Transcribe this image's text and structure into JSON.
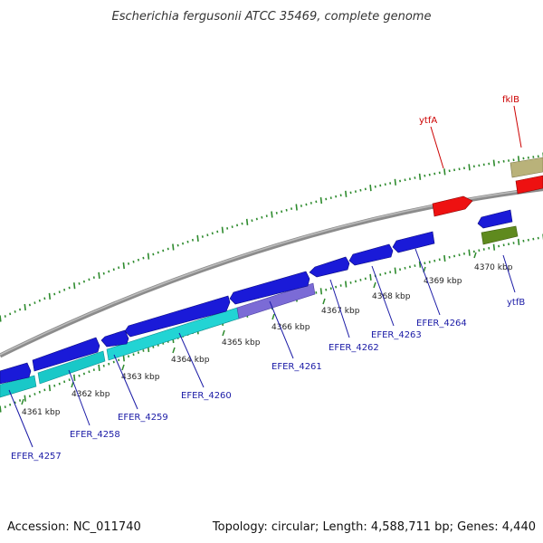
{
  "title": "Escherichia fergusonii ATCC 35469, complete genome",
  "footer": {
    "accession": "Accession: NC_011740",
    "summary": "Topology: circular; Length: 4,588,711 bp; Genes: 4,440"
  },
  "colors": {
    "backbone": "#8c8c8c",
    "tick": "#2e8b2e",
    "blue_label": "#1a1aa6",
    "red_label": "#cc0000",
    "cds_blue": "#1a1ad8",
    "cds_cyan": "#19c8c8",
    "cds_red": "#ee1111",
    "cds_olive": "#5f8a1e",
    "cds_khaki": "#b9b27a",
    "cds_purple": "#7b6bd6"
  },
  "ticks": [
    {
      "label": "4361 kbp"
    },
    {
      "label": "4362 kbp"
    },
    {
      "label": "4363 kbp"
    },
    {
      "label": "4364 kbp"
    },
    {
      "label": "4365 kbp"
    },
    {
      "label": "4366 kbp"
    },
    {
      "label": "4367 kbp"
    },
    {
      "label": "4368 kbp"
    },
    {
      "label": "4369 kbp"
    },
    {
      "label": "4370 kbp"
    }
  ],
  "genes": [
    {
      "name": "EFER_4257",
      "color": "blue"
    },
    {
      "name": "EFER_4258",
      "color": "blue"
    },
    {
      "name": "EFER_4259",
      "color": "blue"
    },
    {
      "name": "EFER_4260",
      "color": "blue"
    },
    {
      "name": "EFER_4261",
      "color": "blue"
    },
    {
      "name": "EFER_4262",
      "color": "blue"
    },
    {
      "name": "EFER_4263",
      "color": "blue"
    },
    {
      "name": "EFER_4264",
      "color": "blue"
    },
    {
      "name": "ytfB",
      "color": "blue"
    },
    {
      "name": "ytfA",
      "color": "red"
    },
    {
      "name": "fklB",
      "color": "red"
    }
  ]
}
